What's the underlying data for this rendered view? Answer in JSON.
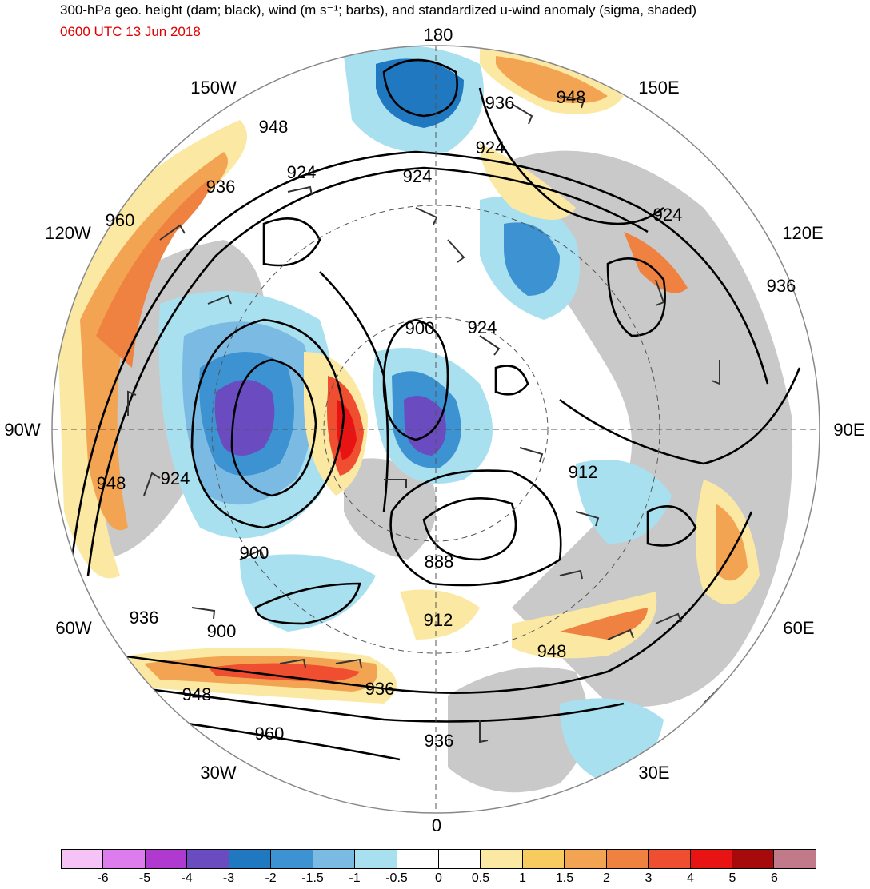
{
  "title": "300-hPa geo. height (dam; black), wind (m s⁻¹; barbs), and standardized u-wind anomaly (sigma, shaded)",
  "subtitle": "0600 UTC 13 Jun 2018",
  "subtitle_color": "#e00000",
  "longitude_labels": [
    {
      "id": "180",
      "text": "180"
    },
    {
      "id": "150E",
      "text": "150E"
    },
    {
      "id": "120E",
      "text": "120E"
    },
    {
      "id": "90E",
      "text": "90E"
    },
    {
      "id": "60E",
      "text": "60E"
    },
    {
      "id": "30E",
      "text": "30E"
    },
    {
      "id": "0",
      "text": "0"
    },
    {
      "id": "30W",
      "text": "30W"
    },
    {
      "id": "60W",
      "text": "60W"
    },
    {
      "id": "90W",
      "text": "90W"
    },
    {
      "id": "120W",
      "text": "120W"
    },
    {
      "id": "150W",
      "text": "150W"
    }
  ],
  "contour_labels": [
    "948",
    "936",
    "924",
    "924",
    "960",
    "936",
    "924",
    "948",
    "924",
    "900",
    "888",
    "912",
    "912",
    "924",
    "936",
    "924",
    "948",
    "900",
    "936",
    "900",
    "948",
    "960",
    "936",
    "936",
    "948"
  ],
  "colorbar": {
    "colors": [
      "#f5c3f5",
      "#dd7ded",
      "#b03ad0",
      "#6a4cc0",
      "#1f78c0",
      "#3d93d2",
      "#7bbbe3",
      "#a9e0f0",
      "#ffffff",
      "#ffffff",
      "#fbe9a3",
      "#f7cb5e",
      "#f3a452",
      "#ef8240",
      "#ef4e30",
      "#e81414",
      "#a70a0a",
      "#c07a8a"
    ],
    "ticks": [
      "-6",
      "-5",
      "-4",
      "-3",
      "-2",
      "-1.5",
      "-1",
      "-0.5",
      "0",
      "0.5",
      "1",
      "1.5",
      "2",
      "3",
      "4",
      "5",
      "6"
    ]
  }
}
